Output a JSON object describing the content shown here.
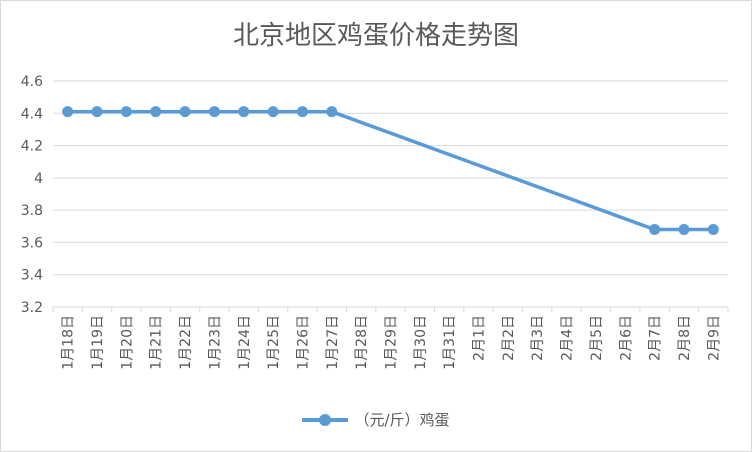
{
  "chart_data": {
    "type": "line",
    "title": "北京地区鸡蛋价格走势图",
    "categories": [
      "1月18日",
      "1月19日",
      "1月20日",
      "1月21日",
      "1月22日",
      "1月23日",
      "1月24日",
      "1月25日",
      "1月26日",
      "1月27日",
      "1月28日",
      "1月29日",
      "1月30日",
      "1月31日",
      "2月1日",
      "2月2日",
      "2月3日",
      "2月4日",
      "2月5日",
      "2月6日",
      "2月7日",
      "2月8日",
      "2月9日"
    ],
    "series": [
      {
        "name": "（元/斤）鸡蛋",
        "values": [
          4.41,
          4.41,
          4.41,
          4.41,
          4.41,
          4.41,
          4.41,
          4.41,
          4.41,
          4.41,
          null,
          null,
          null,
          null,
          null,
          null,
          null,
          null,
          null,
          null,
          3.68,
          3.68,
          3.68
        ],
        "color": "#5b9bd5"
      }
    ],
    "yticks": [
      "3.2",
      "3.4",
      "3.6",
      "3.8",
      "4",
      "4.2",
      "4.4",
      "4.6"
    ],
    "ylim": [
      3.2,
      4.6
    ],
    "xlabel": "",
    "ylabel": "",
    "grid": true,
    "legend_position": "bottom",
    "gap_style": "connect"
  }
}
